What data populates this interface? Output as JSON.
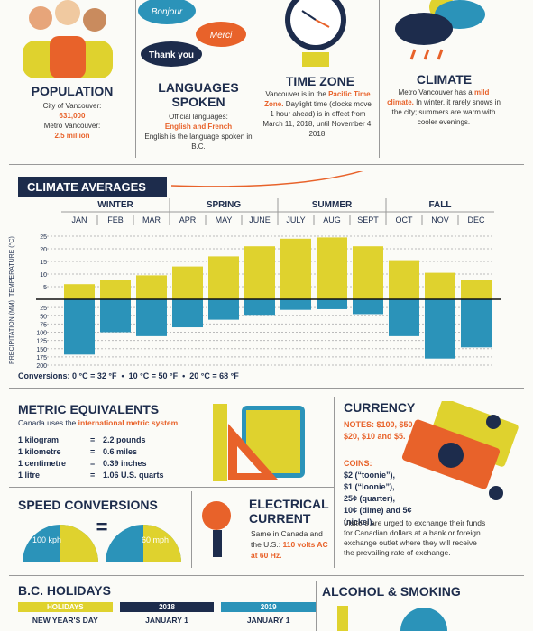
{
  "population": {
    "title": "POPULATION",
    "city_label": "City of Vancouver:",
    "city_value": "631,000",
    "metro_label": "Metro Vancouver:",
    "metro_value": "2.5 million"
  },
  "languages": {
    "bubbles": [
      "Bonjour",
      "Merci",
      "Thank you"
    ],
    "title": "LANGUAGES SPOKEN",
    "official_label": "Official languages:",
    "official_value": "English and French",
    "note": "English is the language spoken in B.C."
  },
  "time_zone": {
    "title": "TIME ZONE",
    "text_before": "Vancouver is in the",
    "highlight": "Pacific Time Zone.",
    "text_after": "Daylight time (clocks move 1 hour ahead) is in effect from March 11, 2018, until November 4, 2018."
  },
  "climate": {
    "title": "CLIMATE",
    "text_before": "Metro Vancouver has a",
    "highlight": "mild climate.",
    "text_after": "In winter, it rarely snows in the city; summers are warm with cooler evenings."
  },
  "climate_averages": {
    "title": "CLIMATE AVERAGES",
    "seasons": [
      "WINTER",
      "SPRING",
      "SUMMER",
      "FALL"
    ],
    "months": [
      "JAN",
      "FEB",
      "MAR",
      "APR",
      "MAY",
      "JUNE",
      "JULY",
      "AUG",
      "SEPT",
      "OCT",
      "NOV",
      "DEC"
    ],
    "temperature": {
      "label": "TEMPERATURE (°C)",
      "color": "#dfd22e",
      "lim": [
        0,
        26
      ],
      "ticks": [
        5,
        10,
        15,
        20,
        25
      ],
      "values": [
        6,
        7.5,
        9.5,
        13,
        17,
        21,
        24,
        24.5,
        21,
        15.5,
        10.5,
        7.5
      ]
    },
    "precipitation": {
      "label": "PRECIPITATION (MM)",
      "color": "#2b93b9",
      "lim": [
        0,
        200
      ],
      "ticks": [
        25,
        50,
        75,
        100,
        125,
        150,
        175,
        200
      ],
      "values": [
        168,
        100,
        112,
        85,
        62,
        50,
        32,
        30,
        45,
        112,
        180,
        146
      ]
    },
    "conversions": "Conversions: 0 °C = 32 °F  •  10 °C = 50 °F  •  20 °C = 68 °F"
  },
  "metric": {
    "title": "METRIC EQUIVALENTS",
    "intro_before": "Canada uses the",
    "intro_highlight": "international metric system",
    "rows": [
      [
        "1 kilogram",
        "=",
        "2.2 pounds"
      ],
      [
        "1 kilometre",
        "=",
        "0.6 miles"
      ],
      [
        "1 centimetre",
        "=",
        "0.39 inches"
      ],
      [
        "1 litre",
        "=",
        "1.06 U.S. quarts"
      ]
    ]
  },
  "currency": {
    "title": "CURRENCY",
    "notes": "NOTES: $100, $50, $20, $10 and $5.",
    "coins_label": "COINS:",
    "coins": [
      "$2 (“toonie”),",
      "$1 (“loonie”),",
      "25¢ (quarter),",
      "10¢ (dime) and 5¢ (nickel)."
    ],
    "advice": "Visitors are urged to exchange their funds for Canadian dollars at a bank or foreign exchange outlet where they will receive the prevailing rate of exchange."
  },
  "speed": {
    "title": "SPEED CONVERSIONS",
    "left": "100 kph",
    "equals": "=",
    "right": "60 mph"
  },
  "electrical": {
    "title": "ELECTRICAL CURRENT",
    "text": "Same in Canada and the U.S.:",
    "highlight": "110 volts AC at 60 Hz."
  },
  "holidays": {
    "title": "B.C. HOLIDAYS",
    "headers": [
      "HOLIDAYS",
      "2018",
      "2019"
    ],
    "rows": [
      [
        "NEW YEAR'S DAY",
        "JANUARY 1",
        "JANUARY 1"
      ]
    ]
  },
  "alcohol_smoking": {
    "title": "ALCOHOL & SMOKING"
  }
}
